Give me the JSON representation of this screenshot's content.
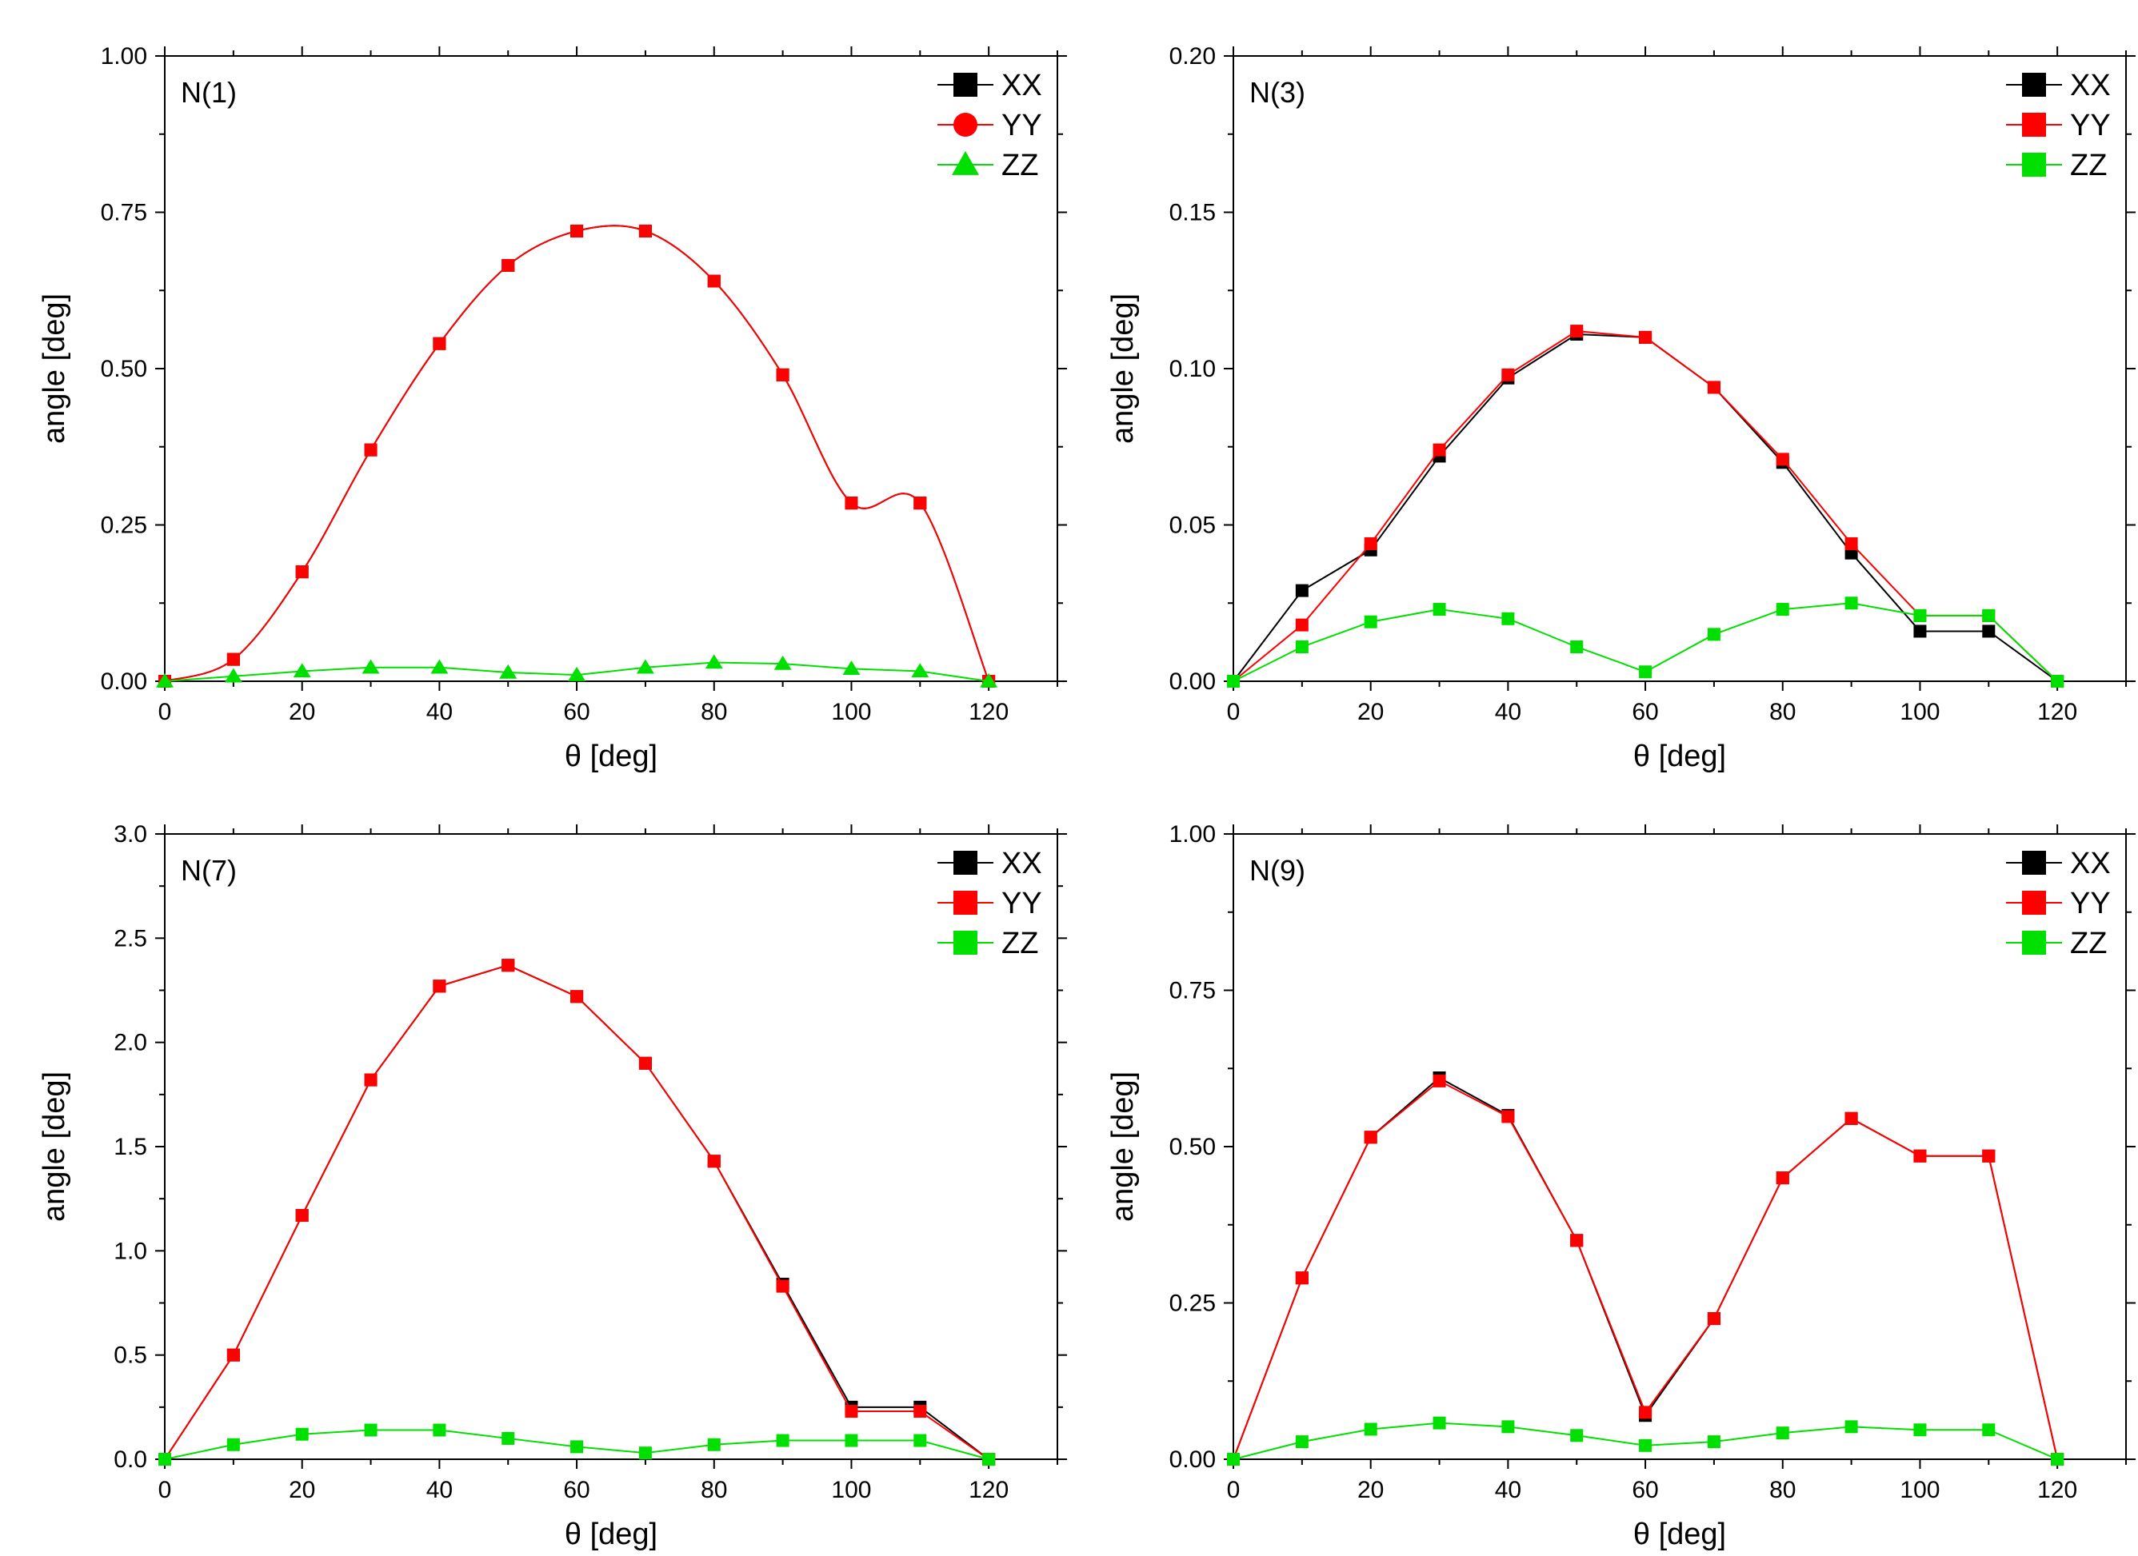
{
  "chart_data": [
    {
      "type": "line",
      "id": "n1",
      "annotation": "N(1)",
      "xlabel": "θ [deg]",
      "ylabel": "angle [deg]",
      "xlim": [
        0,
        130
      ],
      "ylim": [
        0,
        1.0
      ],
      "xticks": [
        0,
        20,
        40,
        60,
        80,
        100,
        120
      ],
      "yticks": [
        0.0,
        0.25,
        0.5,
        0.75,
        1.0
      ],
      "xtick_labels": [
        "0",
        "20",
        "40",
        "60",
        "80",
        "100",
        "120"
      ],
      "ytick_labels": [
        "0.00",
        "0.25",
        "0.50",
        "0.75",
        "1.00"
      ],
      "legend_position": "top-right",
      "x": [
        0,
        10,
        20,
        30,
        40,
        50,
        60,
        70,
        80,
        90,
        100,
        110,
        120
      ],
      "series": [
        {
          "name": "XX",
          "color": "#000000",
          "marker": "square",
          "line": "smooth",
          "values": [
            0,
            0.035,
            0.175,
            0.37,
            0.54,
            0.665,
            0.72,
            0.72,
            0.64,
            0.49,
            0.285,
            0.285,
            0
          ]
        },
        {
          "name": "YY",
          "color": "#ff0000",
          "marker": "circle",
          "line": "smooth",
          "values": [
            0,
            0.035,
            0.175,
            0.37,
            0.54,
            0.665,
            0.72,
            0.72,
            0.64,
            0.49,
            0.285,
            0.285,
            0
          ]
        },
        {
          "name": "ZZ",
          "color": "#00e000",
          "marker": "triangle",
          "line": "straight",
          "values": [
            0,
            0.008,
            0.016,
            0.022,
            0.022,
            0.014,
            0.01,
            0.022,
            0.03,
            0.028,
            0.02,
            0.016,
            0
          ]
        }
      ]
    },
    {
      "type": "line",
      "id": "n3",
      "annotation": "N(3)",
      "xlabel": "θ [deg]",
      "ylabel": "angle [deg]",
      "xlim": [
        0,
        130
      ],
      "ylim": [
        0,
        0.2
      ],
      "xticks": [
        0,
        20,
        40,
        60,
        80,
        100,
        120
      ],
      "yticks": [
        0.0,
        0.05,
        0.1,
        0.15,
        0.2
      ],
      "xtick_labels": [
        "0",
        "20",
        "40",
        "60",
        "80",
        "100",
        "120"
      ],
      "ytick_labels": [
        "0.00",
        "0.05",
        "0.10",
        "0.15",
        "0.20"
      ],
      "legend_position": "top-right",
      "x": [
        0,
        10,
        20,
        30,
        40,
        50,
        60,
        70,
        80,
        90,
        100,
        110,
        120
      ],
      "series": [
        {
          "name": "XX",
          "color": "#000000",
          "marker": "square",
          "line": "straight",
          "values": [
            0,
            0.029,
            0.042,
            0.072,
            0.097,
            0.111,
            0.11,
            0.094,
            0.07,
            0.041,
            0.016,
            0.016,
            0
          ]
        },
        {
          "name": "YY",
          "color": "#ff0000",
          "marker": "square",
          "line": "straight",
          "values": [
            0,
            0.018,
            0.044,
            0.074,
            0.098,
            0.112,
            0.11,
            0.094,
            0.071,
            0.044,
            0.021,
            0.021,
            0
          ]
        },
        {
          "name": "ZZ",
          "color": "#00e000",
          "marker": "square",
          "line": "straight",
          "values": [
            0,
            0.011,
            0.019,
            0.023,
            0.02,
            0.011,
            0.003,
            0.015,
            0.023,
            0.025,
            0.021,
            0.021,
            0
          ]
        }
      ]
    },
    {
      "type": "line",
      "id": "n7",
      "annotation": "N(7)",
      "xlabel": "θ [deg]",
      "ylabel": "angle [deg]",
      "xlim": [
        0,
        130
      ],
      "ylim": [
        0,
        3.0
      ],
      "xticks": [
        0,
        20,
        40,
        60,
        80,
        100,
        120
      ],
      "yticks": [
        0.0,
        0.5,
        1.0,
        1.5,
        2.0,
        2.5,
        3.0
      ],
      "xtick_labels": [
        "0",
        "20",
        "40",
        "60",
        "80",
        "100",
        "120"
      ],
      "ytick_labels": [
        "0.0",
        "0.5",
        "1.0",
        "1.5",
        "2.0",
        "2.5",
        "3.0"
      ],
      "legend_position": "top-right",
      "x": [
        0,
        10,
        20,
        30,
        40,
        50,
        60,
        70,
        80,
        90,
        100,
        110,
        120
      ],
      "series": [
        {
          "name": "XX",
          "color": "#000000",
          "marker": "square",
          "line": "straight",
          "values": [
            0,
            0.5,
            1.17,
            1.82,
            2.27,
            2.37,
            2.22,
            1.9,
            1.43,
            0.84,
            0.25,
            0.25,
            0
          ]
        },
        {
          "name": "YY",
          "color": "#ff0000",
          "marker": "square",
          "line": "straight",
          "values": [
            0,
            0.5,
            1.17,
            1.82,
            2.27,
            2.37,
            2.22,
            1.9,
            1.43,
            0.83,
            0.23,
            0.23,
            0
          ]
        },
        {
          "name": "ZZ",
          "color": "#00e000",
          "marker": "square",
          "line": "straight",
          "values": [
            0,
            0.07,
            0.12,
            0.14,
            0.14,
            0.1,
            0.06,
            0.03,
            0.07,
            0.09,
            0.09,
            0.09,
            0
          ]
        }
      ]
    },
    {
      "type": "line",
      "id": "n9",
      "annotation": "N(9)",
      "xlabel": "θ [deg]",
      "ylabel": "angle [deg]",
      "xlim": [
        0,
        130
      ],
      "ylim": [
        0,
        1.0
      ],
      "xticks": [
        0,
        20,
        40,
        60,
        80,
        100,
        120
      ],
      "yticks": [
        0.0,
        0.25,
        0.5,
        0.75,
        1.0
      ],
      "xtick_labels": [
        "0",
        "20",
        "40",
        "60",
        "80",
        "100",
        "120"
      ],
      "ytick_labels": [
        "0.00",
        "0.25",
        "0.50",
        "0.75",
        "1.00"
      ],
      "legend_position": "top-right",
      "x": [
        0,
        10,
        20,
        30,
        40,
        50,
        60,
        70,
        80,
        90,
        100,
        110,
        120
      ],
      "series": [
        {
          "name": "XX",
          "color": "#000000",
          "marker": "square",
          "line": "straight",
          "values": [
            0,
            0.29,
            0.515,
            0.61,
            0.55,
            0.35,
            0.07,
            0.225,
            0.45,
            0.545,
            0.485,
            0.485,
            0
          ]
        },
        {
          "name": "YY",
          "color": "#ff0000",
          "marker": "square",
          "line": "straight",
          "values": [
            0,
            0.29,
            0.515,
            0.605,
            0.548,
            0.35,
            0.075,
            0.225,
            0.45,
            0.545,
            0.485,
            0.485,
            0
          ]
        },
        {
          "name": "ZZ",
          "color": "#00e000",
          "marker": "square",
          "line": "straight",
          "values": [
            0,
            0.028,
            0.048,
            0.058,
            0.052,
            0.038,
            0.022,
            0.028,
            0.042,
            0.052,
            0.047,
            0.047,
            0
          ]
        }
      ]
    }
  ]
}
